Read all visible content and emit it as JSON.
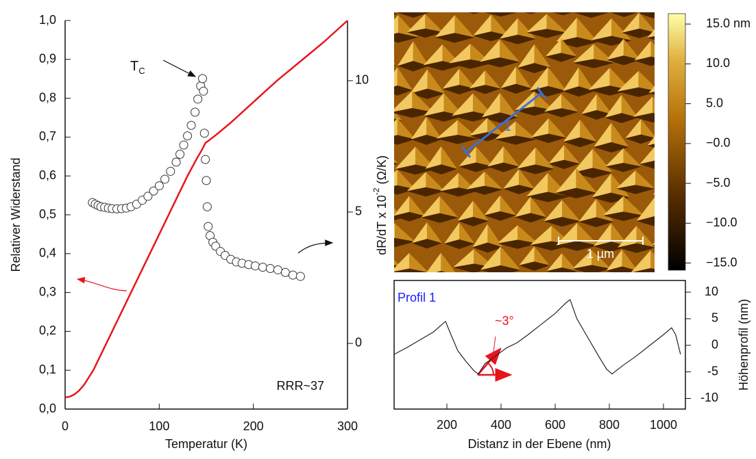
{
  "chart_data": [
    {
      "type": "line",
      "xlabel": "Temperatur (K)",
      "ylabel": "Relativer Widerstand",
      "y2label": {
        "base": "dR/dT x 10",
        "exponent": "-2",
        "unit": " (Ω/K)"
      },
      "xlim": [
        0,
        300
      ],
      "xticks": [
        0,
        100,
        200,
        300
      ],
      "ylim": [
        0,
        1.0
      ],
      "yticks": [
        {
          "value": 0,
          "label": "0,0"
        },
        {
          "value": 0.1,
          "label": "0,1"
        },
        {
          "value": 0.2,
          "label": "0,2"
        },
        {
          "value": 0.3,
          "label": "0,3"
        },
        {
          "value": 0.4,
          "label": "0,4"
        },
        {
          "value": 0.5,
          "label": "0,5"
        },
        {
          "value": 0.6,
          "label": "0,6"
        },
        {
          "value": 0.7,
          "label": "0,7"
        },
        {
          "value": 0.8,
          "label": "0,8"
        },
        {
          "value": 0.9,
          "label": "0,9"
        },
        {
          "value": 1.0,
          "label": "1,0"
        }
      ],
      "y2lim": [
        -2.5,
        12.29
      ],
      "y2ticks": [
        0,
        5,
        10
      ],
      "series": [
        {
          "type": "line",
          "color": "#e8141c",
          "x": [
            0,
            5,
            10,
            15,
            20,
            30,
            40,
            50,
            60,
            70,
            80,
            90,
            100,
            110,
            120,
            130,
            140,
            146,
            149,
            152,
            160,
            175,
            200,
            225,
            250,
            275,
            300
          ],
          "values": [
            0.03,
            0.032,
            0.038,
            0.048,
            0.062,
            0.1,
            0.15,
            0.2,
            0.25,
            0.3,
            0.35,
            0.4,
            0.45,
            0.5,
            0.55,
            0.6,
            0.645,
            0.67,
            0.685,
            0.69,
            0.705,
            0.735,
            0.79,
            0.845,
            0.895,
            0.945,
            1.0
          ]
        },
        {
          "type": "scatter",
          "axis": "y2",
          "color": "#333333",
          "x": [
            29,
            32,
            35,
            38,
            42,
            46,
            50,
            55,
            60,
            65,
            70,
            76,
            82,
            88,
            94,
            100,
            106,
            112,
            118,
            122,
            126,
            130,
            134,
            138,
            141,
            144,
            146,
            147,
            148,
            149,
            150,
            151,
            152,
            154,
            157,
            160,
            165,
            170,
            176,
            182,
            188,
            195,
            202,
            210,
            218,
            226,
            234,
            242,
            250
          ],
          "values": [
            5.36,
            5.3,
            5.25,
            5.2,
            5.18,
            5.15,
            5.13,
            5.12,
            5.13,
            5.15,
            5.2,
            5.3,
            5.45,
            5.6,
            5.8,
            6.0,
            6.25,
            6.55,
            6.9,
            7.2,
            7.55,
            7.9,
            8.3,
            8.8,
            9.3,
            9.8,
            10.08,
            9.6,
            8.0,
            7.0,
            6.2,
            5.2,
            4.45,
            4.1,
            3.85,
            3.7,
            3.5,
            3.35,
            3.2,
            3.1,
            3.05,
            3.0,
            2.95,
            2.9,
            2.85,
            2.8,
            2.7,
            2.6,
            2.55
          ]
        }
      ],
      "annotations": [
        {
          "text": "T",
          "subscript": "C"
        },
        {
          "text": "RRR~37"
        }
      ]
    },
    {
      "type": "image",
      "clim": [
        -15.9,
        16.3
      ],
      "cticks": [
        {
          "value": 15,
          "label": "15.0 nm"
        },
        {
          "value": 10,
          "label": "10.0"
        },
        {
          "value": 5,
          "label": "5.0"
        },
        {
          "value": 0,
          "label": "−0.0"
        },
        {
          "value": -5,
          "label": "−5.0"
        },
        {
          "value": -10,
          "label": "−10.0"
        },
        {
          "value": -15,
          "label": "−15.0"
        }
      ],
      "annotations": [
        {
          "text": "1 µm"
        },
        {
          "text": "1"
        }
      ]
    },
    {
      "type": "line",
      "xlabel": "Distanz in der Ebene (nm)",
      "ylabel": "Höhenprofil (nm)",
      "xlim": [
        5,
        1081
      ],
      "xticks": [
        200,
        400,
        600,
        800,
        1000
      ],
      "ylim": [
        -12,
        12.2
      ],
      "yticks": [
        10,
        5,
        0,
        -5,
        -10
      ],
      "series": [
        {
          "type": "line",
          "color": "#222222",
          "x": [
            5,
            50,
            100,
            150,
            195,
            215,
            240,
            270,
            300,
            316,
            340,
            380,
            420,
            460,
            500,
            550,
            600,
            640,
            655,
            680,
            720,
            760,
            790,
            810,
            850,
            900,
            950,
            1000,
            1030,
            1045,
            1063
          ],
          "values": [
            -1.7,
            -0.5,
            1,
            2.5,
            4.5,
            2,
            -1,
            -3,
            -4.8,
            -5.4,
            -3.5,
            -2,
            -0.5,
            0.5,
            2,
            4,
            6,
            8,
            8.6,
            5,
            1.5,
            -2,
            -4.5,
            -5.4,
            -3.8,
            -2,
            0,
            2,
            3.3,
            2,
            -1.7
          ]
        }
      ],
      "annotations": [
        {
          "text": "Profil 1",
          "color": "#1a1aff"
        },
        {
          "text": "~3°",
          "color": "#e8141c"
        }
      ]
    }
  ]
}
